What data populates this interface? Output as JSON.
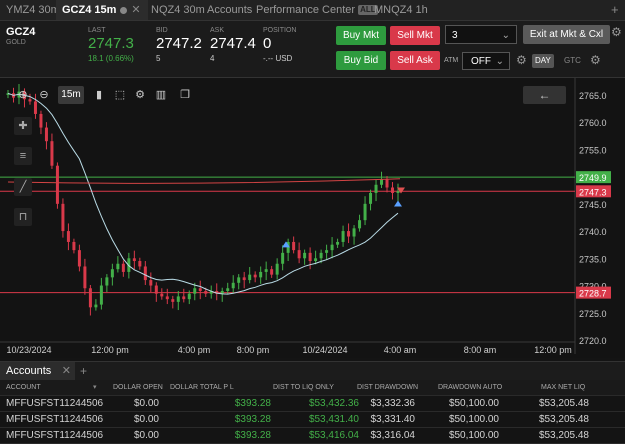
{
  "tabs": [
    {
      "label": "YMZ4 30m",
      "active": false
    },
    {
      "label": "GCZ4 15m",
      "active": true
    },
    {
      "label": "NQZ4 30m",
      "active": false
    },
    {
      "label": "Accounts",
      "active": false
    },
    {
      "label": "Performance Center",
      "active": false,
      "badge": "ALL"
    },
    {
      "label": "MNQZ4 1h",
      "active": false
    }
  ],
  "tab_add": "+",
  "quote": {
    "symbol": "GCZ4",
    "name": "GOLD",
    "last_label": "LAST",
    "last": "2747.3",
    "change": "18.1 (0.66%)",
    "bid_label": "BID",
    "bid": "2747.2",
    "bid_size": "5",
    "ask_label": "ASK",
    "ask": "2747.4",
    "ask_size": "4",
    "position_label": "POSITION",
    "position": "0",
    "position_sub": "-.-- USD"
  },
  "buttons": {
    "buy_mkt": "Buy Mkt",
    "sell_mkt": "Sell Mkt",
    "buy_bid": "Buy Bid",
    "sell_ask": "Sell Ask",
    "exit": "Exit at Mkt & Cxl",
    "quantity": "3",
    "atm_label": "ATM",
    "atm_value": "OFF",
    "day": "DAY",
    "gtc": "GTC"
  },
  "chart_toolbar": {
    "timeframe": "15m"
  },
  "colors": {
    "up": "#43b049",
    "down": "#d9394a",
    "ma": "#b9dbe6",
    "slow_ma": "#d24444"
  },
  "chart_data": {
    "type": "candlestick",
    "title": "",
    "y_ticks": [
      "2765.0",
      "2760.0",
      "2755.0",
      "2750.0",
      "2745.0",
      "2740.0",
      "2735.0",
      "2730.0",
      "2725.0",
      "2720.0"
    ],
    "ylim": [
      2720.0,
      2767.0
    ],
    "x_ticks": [
      "10/23/2024",
      "12:00 pm",
      "4:00 pm",
      "8:00 pm",
      "10/24/2024",
      "4:00 am",
      "8:00 am",
      "12:00 pm"
    ],
    "price_lines": [
      {
        "label": "2749.9",
        "value": 2749.9,
        "color": "#43b049"
      },
      {
        "label": "2747.3",
        "value": 2747.3,
        "color": "#d9394a"
      },
      {
        "label": "2728.7",
        "value": 2728.7,
        "color": "#d9394a"
      }
    ],
    "closes": [
      2765.3,
      2764.5,
      2765.6,
      2764.2,
      2763.8,
      2761.5,
      2759.0,
      2756.5,
      2752.0,
      2745.0,
      2740.0,
      2738.0,
      2736.5,
      2733.5,
      2729.5,
      2726.0,
      2726.5,
      2730.0,
      2731.5,
      2733.0,
      2734.0,
      2732.5,
      2735.0,
      2734.5,
      2733.5,
      2731.0,
      2730.0,
      2728.5,
      2728.0,
      2727.5,
      2727.0,
      2728.0,
      2727.5,
      2728.5,
      2729.5,
      2729.0,
      2728.5,
      2729.0,
      2728.5,
      2729.0,
      2729.5,
      2730.5,
      2731.5,
      2731.0,
      2732.0,
      2731.5,
      2732.5,
      2733.0,
      2732.0,
      2734.0,
      2736.0,
      2738.0,
      2736.5,
      2735.0,
      2736.0,
      2734.5,
      2735.0,
      2736.0,
      2736.5,
      2737.5,
      2738.0,
      2740.0,
      2739.0,
      2740.5,
      2742.0,
      2745.0,
      2747.0,
      2748.5,
      2749.5,
      2748.0,
      2747.0,
      2747.3
    ]
  },
  "accounts": {
    "tab_label": "Accounts",
    "columns": [
      "ACCOUNT",
      "DOLLAR OPEN",
      "DOLLAR TOTAL P L",
      "DIST TO LIQ ONLY",
      "DIST DRAWDOWN",
      "DRAWDOWN AUTO",
      "MAX NET LIQ"
    ],
    "rows": [
      [
        "MFFUSFST11244506",
        "$0.00",
        "$393.28",
        "$53,432.36",
        "$3,332.36",
        "$50,100.00",
        "$53,205.48"
      ],
      [
        "MFFUSFST11244506",
        "$0.00",
        "$393.28",
        "$53,431.40",
        "$3,331.40",
        "$50,100.00",
        "$53,205.48"
      ],
      [
        "MFFUSFST11244506",
        "$0.00",
        "$393.28",
        "$53,416.04",
        "$3,316.04",
        "$50,100.00",
        "$53,205.48"
      ]
    ]
  }
}
